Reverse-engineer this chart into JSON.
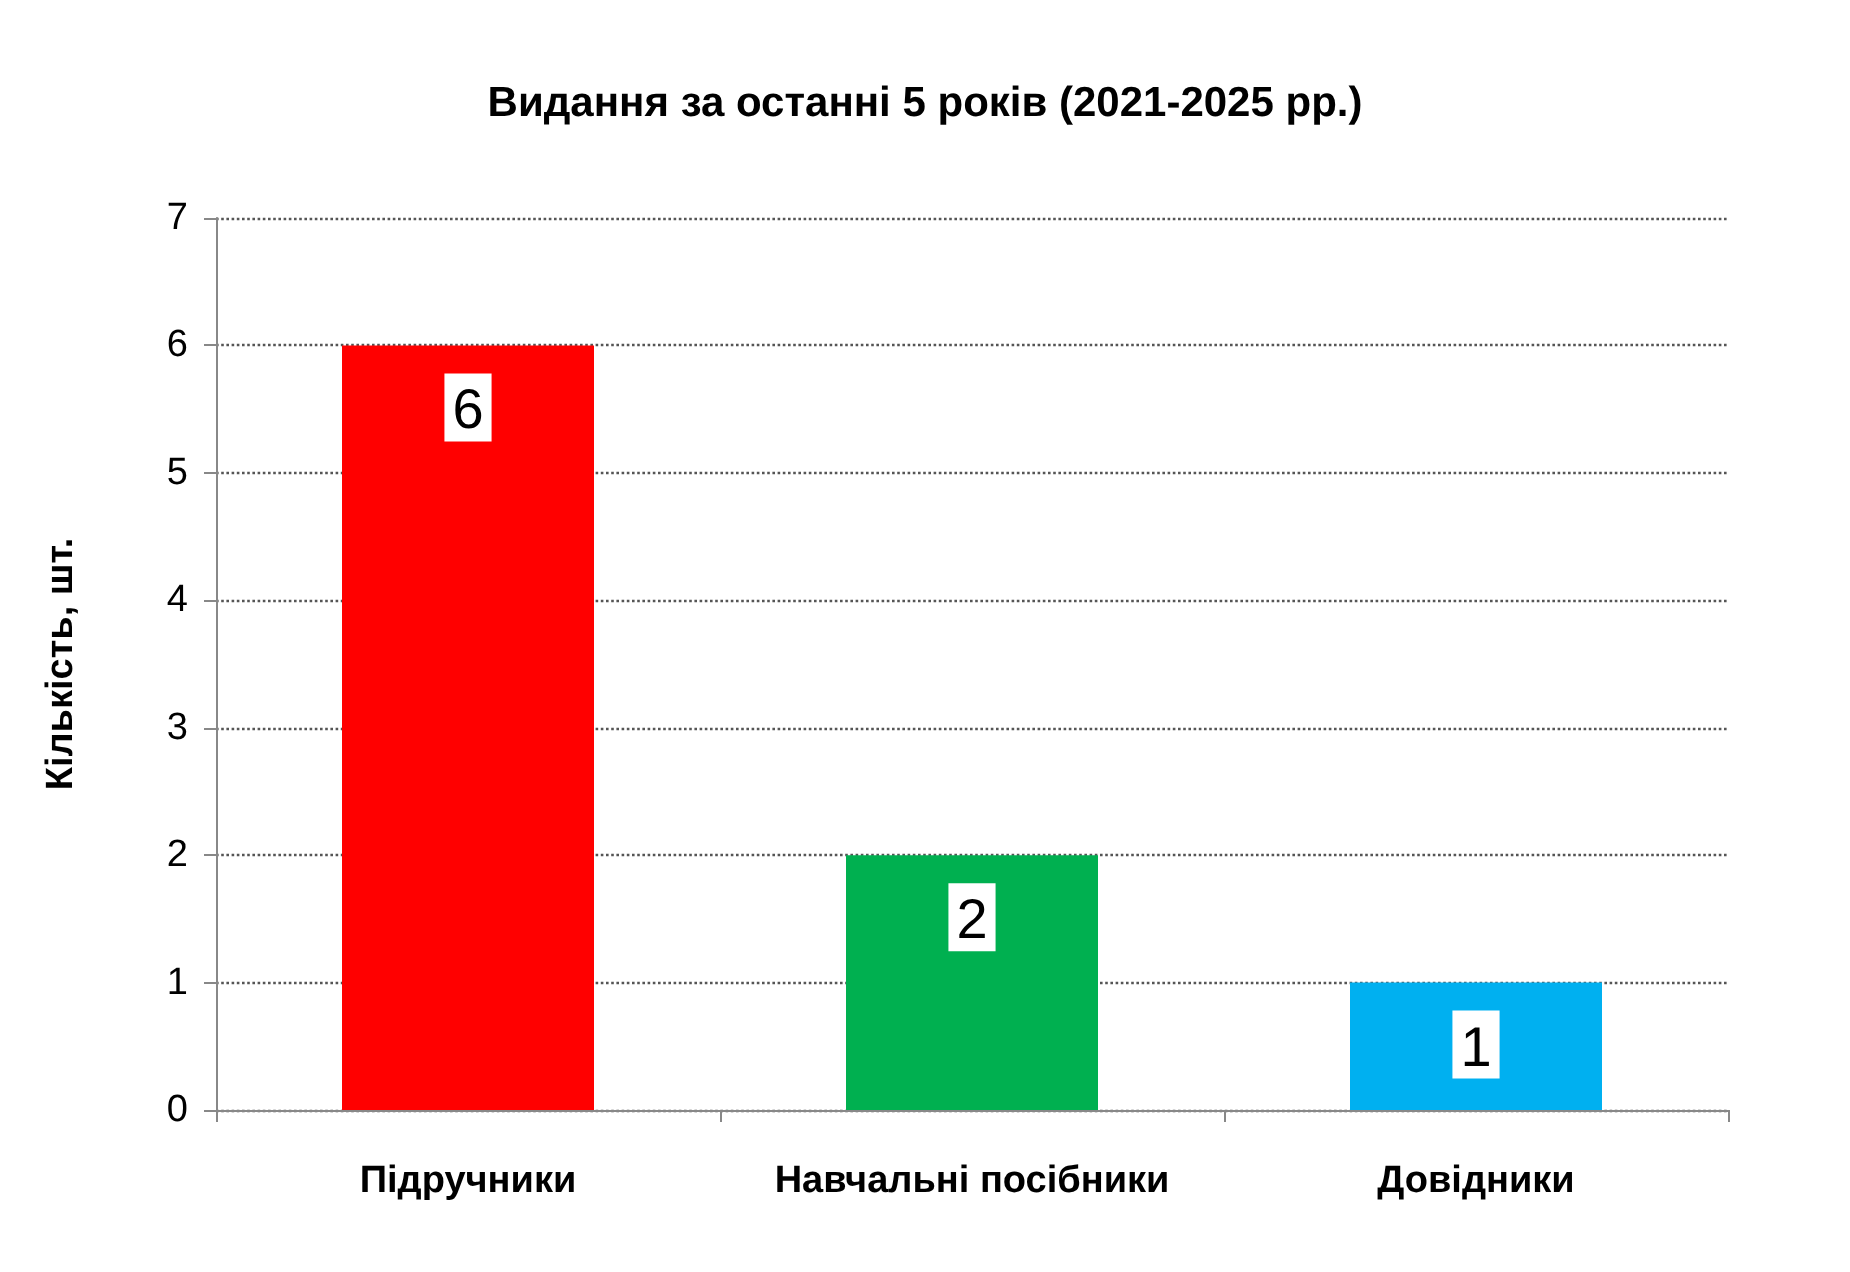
{
  "chart_data": {
    "type": "bar",
    "title": "Видання за останні 5 років (2021-2025 рр.)",
    "ylabel": "Кількість, шт.",
    "categories": [
      "Підручники",
      "Навчальні посібники",
      "Довідники"
    ],
    "values": [
      6,
      2,
      1
    ],
    "colors": [
      "#ff0000",
      "#00b050",
      "#00b0f0"
    ],
    "ylim": [
      0,
      7
    ],
    "yticks": [
      0,
      1,
      2,
      3,
      4,
      5,
      6,
      7
    ],
    "grid": "y",
    "data_labels": true
  }
}
